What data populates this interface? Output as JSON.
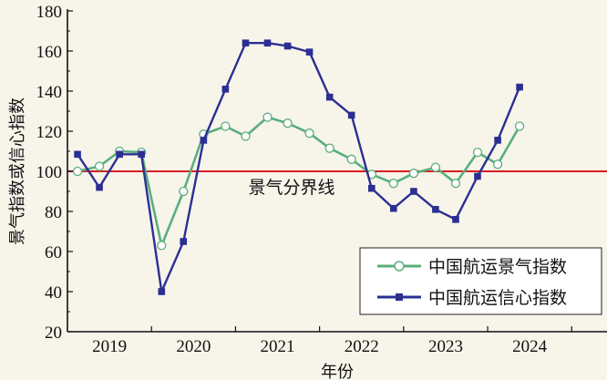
{
  "colors": {
    "background": "#f7f4ea",
    "green_series": "#5aae7d",
    "blue_series": "#2b2f92",
    "reference_line": "#d81e22",
    "axis": "#111111"
  },
  "chart_data": {
    "type": "line",
    "xlabel": "年份",
    "ylabel": "景气指数或信心指数",
    "ylim": [
      20,
      180
    ],
    "yticks": [
      20,
      40,
      60,
      80,
      100,
      120,
      140,
      160,
      180
    ],
    "xlim": [
      2018.5,
      2024.92
    ],
    "xtick_labels": [
      "2019",
      "2020",
      "2021",
      "2022",
      "2023",
      "2024"
    ],
    "xtick_positions": [
      2019,
      2020,
      2021,
      2022,
      2023,
      2024
    ],
    "xtick_dividers": [
      2019.5,
      2020.5,
      2021.5,
      2022.5,
      2023.5,
      2024.5
    ],
    "grid": false,
    "legend_position": "bottom-right",
    "reference_line": {
      "y": 100,
      "label": "景气分界线"
    },
    "x": [
      2018.62,
      2018.88,
      2019.12,
      2019.38,
      2019.62,
      2019.88,
      2020.12,
      2020.38,
      2020.62,
      2020.88,
      2021.12,
      2021.38,
      2021.62,
      2021.88,
      2022.12,
      2022.38,
      2022.62,
      2022.88,
      2023.12,
      2023.38,
      2023.62,
      2023.88,
      2024.12
    ],
    "series": [
      {
        "name": "中国航运景气指数",
        "marker": "circle",
        "values": [
          100,
          102.5,
          110,
          109.5,
          63,
          90,
          118.5,
          122.5,
          117.5,
          127,
          124,
          119,
          111.5,
          106,
          98.5,
          94,
          99,
          102,
          94,
          109.5,
          103.5,
          122.5,
          null
        ]
      },
      {
        "name": "中国航运信心指数",
        "marker": "square",
        "values": [
          108.5,
          92,
          108.5,
          108.5,
          40,
          65,
          115.5,
          141,
          164,
          164,
          162.5,
          159.5,
          137,
          128,
          91.5,
          81.5,
          90,
          81,
          76,
          97.5,
          115.5,
          142,
          null
        ]
      }
    ]
  }
}
